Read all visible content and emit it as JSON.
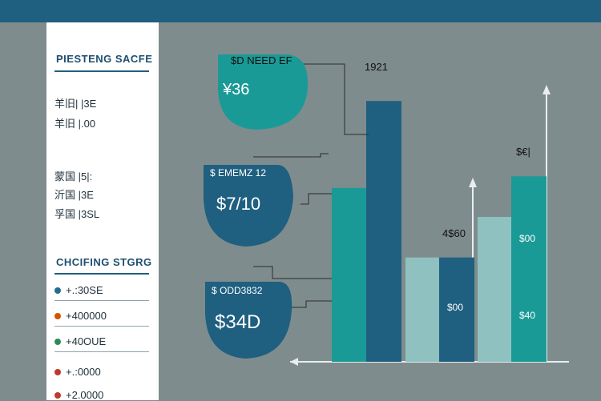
{
  "sidebar": {
    "title_top": "PIESTENG SACFE",
    "group1": [
      "羊旧|  |3E",
      "羊旧 |.00"
    ],
    "group2": [
      "蒙国 |5|:",
      "沂国  |3E",
      "孚国 |3SL"
    ],
    "title_mid": "CHCIFING STGRG",
    "legend": [
      {
        "label": "+.:30SE",
        "color": "#1f6f8b"
      },
      {
        "label": "+400000",
        "color": "#d35400"
      },
      {
        "label": "+40OUE",
        "color": "#2e8b57"
      },
      {
        "label": "+.:0000",
        "color": "#c0392b"
      },
      {
        "label": "+2.0000",
        "color": "#c0392b"
      }
    ]
  },
  "callouts": [
    {
      "heading": "$D NEED EF",
      "value": "¥36",
      "color": "#1a9a96"
    },
    {
      "heading": "$ EMEMZ 12",
      "value": "$7/10",
      "color": "#1f5f80"
    },
    {
      "heading": "$ ODD3832",
      "value": "$34D",
      "color": "#1f5f80"
    }
  ],
  "chart_data": {
    "type": "bar",
    "bars": [
      {
        "value": 60,
        "color": "#1a9a96"
      },
      {
        "value": 90,
        "color": "#1f5f80"
      },
      {
        "value": 36,
        "color": "#8fc1c0"
      },
      {
        "value": 36,
        "color": "#1f5f80"
      },
      {
        "value": 50,
        "color": "#8fc1c0"
      },
      {
        "value": 64,
        "color": "#1a9a96"
      }
    ],
    "labels": {
      "top_tall": "1921",
      "top_mid": "4$60",
      "top_right": "$€|",
      "bar4": "$00",
      "bar6_upper": "$00",
      "bar6_lower": "$40"
    },
    "ylim": [
      0,
      100
    ],
    "grid": false
  }
}
